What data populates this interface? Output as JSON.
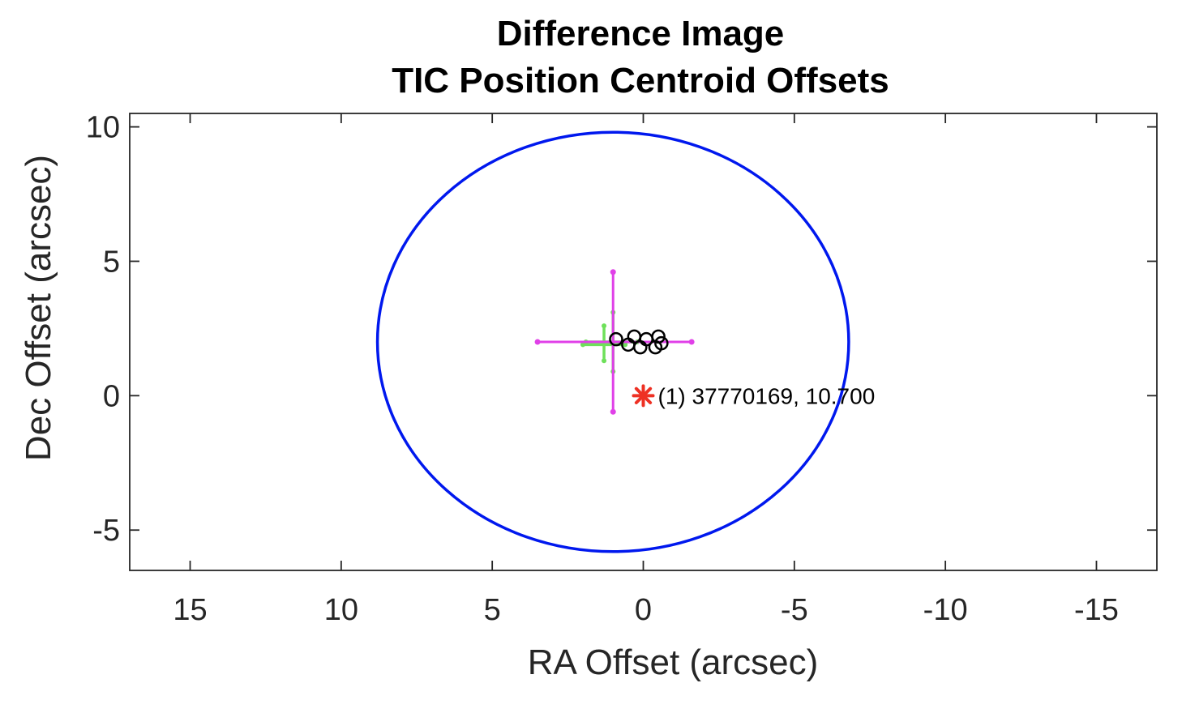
{
  "chart_data": {
    "type": "scatter",
    "title": [
      "Difference Image",
      "TIC Position Centroid Offsets"
    ],
    "xlabel": "RA Offset (arcsec)",
    "ylabel": "Dec Offset (arcsec)",
    "xlim": [
      17,
      -17
    ],
    "ylim": [
      -6.5,
      10.5
    ],
    "xticks": [
      15,
      10,
      5,
      0,
      -5,
      -10,
      -15
    ],
    "yticks": [
      10,
      5,
      0,
      -5
    ],
    "x_reversed": true,
    "grid": false,
    "uncertainty_circle": {
      "center": [
        1.0,
        2.0
      ],
      "radius_ra": 7.8,
      "radius_dec": 7.8
    },
    "magenta_error_bars": {
      "center": [
        1.0,
        2.0
      ],
      "ra_range": [
        3.5,
        -1.6
      ],
      "dec_range": [
        -0.6,
        4.6
      ]
    },
    "green_error_bars": [
      {
        "center": [
          1.0,
          2.0
        ],
        "ra_range": [
          1.9,
          0.2
        ],
        "dec_range": [
          0.9,
          3.1
        ]
      },
      {
        "center": [
          1.3,
          1.9
        ],
        "ra_range": [
          2.0,
          0.6
        ],
        "dec_range": [
          1.3,
          2.6
        ]
      }
    ],
    "centroid_points": [
      [
        0.9,
        2.1
      ],
      [
        0.5,
        1.9
      ],
      [
        0.3,
        2.2
      ],
      [
        0.1,
        1.8
      ],
      [
        -0.1,
        2.1
      ],
      [
        -0.4,
        1.8
      ],
      [
        -0.5,
        2.2
      ],
      [
        -0.6,
        1.95
      ]
    ],
    "targets": [
      {
        "x": 0,
        "y": 0,
        "label": "(1) 37770169, 10.700",
        "marker": "asterisk",
        "color": "#ee3124"
      }
    ],
    "colors": {
      "circle": "#0018ee",
      "magenta": "#e040e8",
      "green": "#6ee05a",
      "centroid": "#000000",
      "target": "#ee3124",
      "axes": "#262626"
    }
  }
}
